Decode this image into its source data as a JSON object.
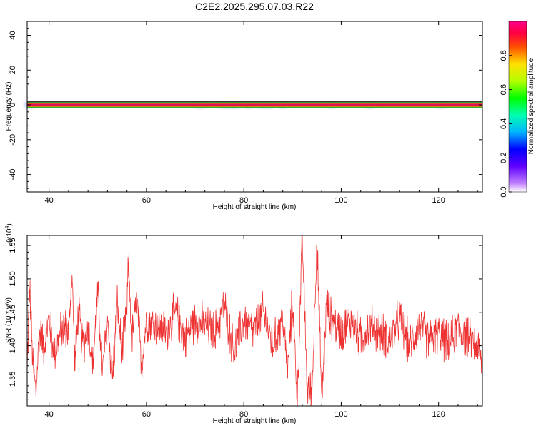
{
  "title": "C2E2.2025.295.07.03.R22",
  "colors": {
    "signal_line": "#ee3333",
    "band_core": "#dd1155",
    "band_inner": "#ff7700",
    "band_mid": "#33cc33",
    "band_outer": "#111111",
    "halo": "#b8c8ff"
  },
  "chart_data": [
    {
      "type": "heatmap",
      "xlabel": "Height of straight line (km)",
      "ylabel": "Frequency (Hz)",
      "xlim": [
        35.5,
        129
      ],
      "ylim": [
        -50,
        48
      ],
      "x_ticks": [
        40,
        60,
        80,
        100,
        120
      ],
      "y_ticks": [
        40,
        20,
        0,
        -20,
        -40
      ],
      "band_center_hz": 0,
      "band_width_hz": 4,
      "halo_blobs_km": [
        36,
        71,
        76,
        77.5,
        78.5,
        81,
        83.5,
        85,
        88,
        98,
        106,
        120.5
      ],
      "grid": false,
      "colorbar": {
        "label": "Normalized spectral amplitude",
        "ticks": [
          "0.0",
          "0.2",
          "0.4",
          "0.6",
          "0.8"
        ],
        "range": [
          0,
          1
        ]
      }
    },
    {
      "type": "line",
      "xlabel": "Height of straight line (km)",
      "ylabel": "SNR (10 * v/v)",
      "scale_label": "(x10",
      "scale_exp": "4",
      "scale_close": ")",
      "xlim": [
        35.5,
        129
      ],
      "ylim": [
        1.31,
        1.565
      ],
      "x_ticks": [
        40,
        60,
        80,
        100,
        120
      ],
      "y_ticks": [
        "1.35",
        "1.40",
        "1.45",
        "1.50",
        "1.55"
      ],
      "grid": false,
      "series": [
        {
          "anchors_x": [
            35.5,
            36,
            36.6,
            37.3,
            38,
            39,
            40,
            41,
            42,
            43,
            44,
            44.7,
            45.3,
            46,
            47,
            48,
            49,
            50,
            51,
            52,
            53,
            54,
            55,
            56,
            56.3,
            57,
            58,
            59,
            60,
            62,
            64,
            66,
            68,
            70,
            72,
            74,
            76,
            78,
            80,
            82,
            84,
            86,
            88,
            89,
            90,
            91,
            92,
            93,
            94,
            95,
            96,
            97,
            98,
            100,
            102,
            104,
            106,
            108,
            110,
            112,
            114,
            116,
            118,
            120,
            122,
            124,
            126,
            128,
            129
          ],
          "anchors_y": [
            1.36,
            1.49,
            1.38,
            1.33,
            1.42,
            1.4,
            1.44,
            1.39,
            1.41,
            1.43,
            1.42,
            1.51,
            1.37,
            1.45,
            1.4,
            1.43,
            1.37,
            1.48,
            1.36,
            1.44,
            1.35,
            1.46,
            1.39,
            1.45,
            1.53,
            1.41,
            1.47,
            1.37,
            1.44,
            1.43,
            1.42,
            1.45,
            1.41,
            1.44,
            1.43,
            1.42,
            1.46,
            1.39,
            1.44,
            1.42,
            1.45,
            1.4,
            1.44,
            1.36,
            1.47,
            1.32,
            1.56,
            1.34,
            1.33,
            1.56,
            1.32,
            1.46,
            1.44,
            1.42,
            1.44,
            1.41,
            1.43,
            1.42,
            1.41,
            1.44,
            1.4,
            1.43,
            1.41,
            1.42,
            1.4,
            1.43,
            1.41,
            1.4,
            1.37
          ],
          "noise_amplitude": 0.026
        }
      ]
    }
  ]
}
